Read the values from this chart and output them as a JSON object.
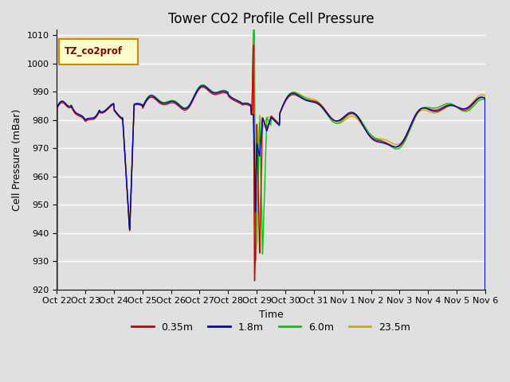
{
  "title": "Tower CO2 Profile Cell Pressure",
  "xlabel": "Time",
  "ylabel": "Cell Pressure (mBar)",
  "ylim": [
    920,
    1012
  ],
  "yticks": [
    920,
    930,
    940,
    950,
    960,
    970,
    980,
    990,
    1000,
    1010
  ],
  "background_color": "#e0e0e0",
  "plot_bg_color": "#e0e0e0",
  "grid_color": "white",
  "series_colors": {
    "0.35m": "#cc0000",
    "1.8m": "#0000cc",
    "6.0m": "#00cc00",
    "23.5m": "#ccaa00"
  },
  "legend_label": "TZ_co2prof",
  "legend_box_color": "#ffffcc",
  "legend_box_edge": "#cc8800",
  "x_tick_labels": [
    "Oct 22",
    "Oct 23",
    "Oct 24",
    "Oct 25",
    "Oct 26",
    "Oct 27",
    "Oct 28",
    "Oct 29",
    "Oct 30",
    "Oct 31",
    "Nov 1",
    "Nov 2",
    "Nov 3",
    "Nov 4",
    "Nov 5",
    "Nov 6"
  ],
  "x_tick_positions": [
    0,
    1,
    2,
    3,
    4,
    5,
    6,
    7,
    8,
    9,
    10,
    11,
    12,
    13,
    14,
    15
  ],
  "title_fontsize": 12,
  "axis_label_fontsize": 9,
  "tick_fontsize": 8
}
